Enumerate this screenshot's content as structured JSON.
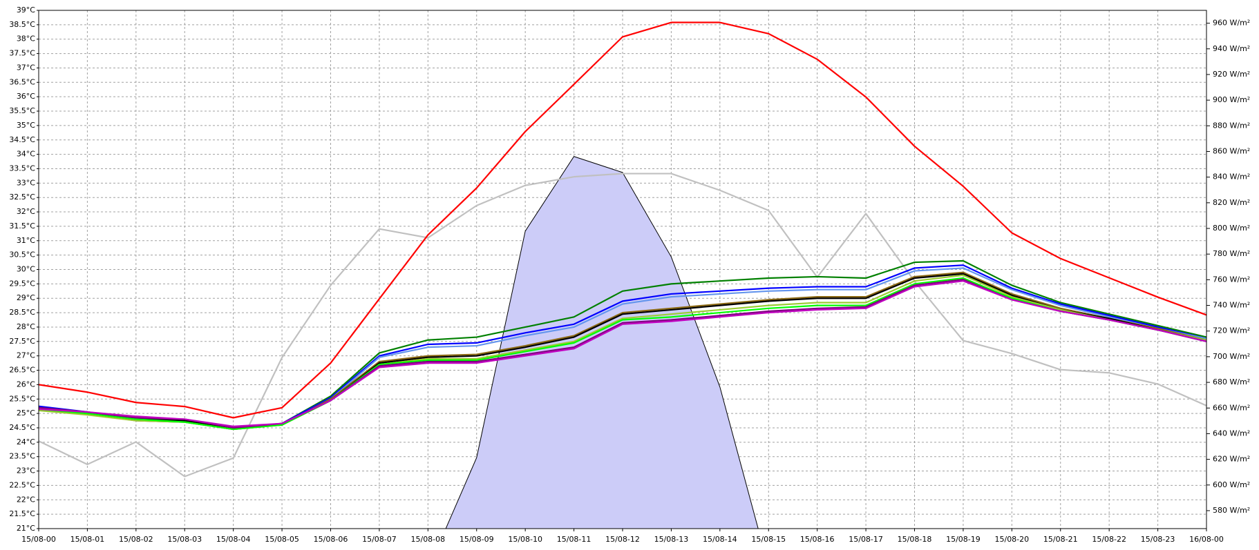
{
  "chart_data": {
    "type": "line",
    "categories": [
      "15/08-00",
      "15/08-01",
      "15/08-02",
      "15/08-03",
      "15/08-04",
      "15/08-05",
      "15/08-06",
      "15/08-07",
      "15/08-08",
      "15/08-09",
      "15/08-10",
      "15/08-11",
      "15/08-12",
      "15/08-13",
      "15/08-14",
      "15/08-15",
      "15/08-16",
      "15/08-17",
      "15/08-18",
      "15/08-19",
      "15/08-20",
      "15/08-21",
      "15/08-22",
      "15/08-23",
      "16/08-00"
    ],
    "ylim": [
      21,
      39
    ],
    "yticks": [
      {
        "value": 21,
        "label": "21°C"
      },
      {
        "value": 21.5,
        "label": "21.5°C"
      },
      {
        "value": 22,
        "label": "22°C"
      },
      {
        "value": 22.5,
        "label": "22.5°C"
      },
      {
        "value": 23,
        "label": "23°C"
      },
      {
        "value": 23.5,
        "label": "23.5°C"
      },
      {
        "value": 24,
        "label": "24°C"
      },
      {
        "value": 24.5,
        "label": "24.5°C"
      },
      {
        "value": 25,
        "label": "25°C"
      },
      {
        "value": 25.5,
        "label": "25.5°C"
      },
      {
        "value": 26,
        "label": "26°C"
      },
      {
        "value": 26.5,
        "label": "26.5°C"
      },
      {
        "value": 27,
        "label": "27°C"
      },
      {
        "value": 27.5,
        "label": "27.5°C"
      },
      {
        "value": 28,
        "label": "28°C"
      },
      {
        "value": 28.5,
        "label": "28.5°C"
      },
      {
        "value": 29,
        "label": "29°C"
      },
      {
        "value": 29.5,
        "label": "29.5°C"
      },
      {
        "value": 30,
        "label": "30°C"
      },
      {
        "value": 30.5,
        "label": "30.5°C"
      },
      {
        "value": 31,
        "label": "31°C"
      },
      {
        "value": 31.5,
        "label": "31.5°C"
      },
      {
        "value": 32,
        "label": "32°C"
      },
      {
        "value": 32.5,
        "label": "32.5°C"
      },
      {
        "value": 33,
        "label": "33°C"
      },
      {
        "value": 33.5,
        "label": "33.5°C"
      },
      {
        "value": 34,
        "label": "34°C"
      },
      {
        "value": 34.5,
        "label": "34.5°C"
      },
      {
        "value": 35,
        "label": "35°C"
      },
      {
        "value": 35.5,
        "label": "35.5°C"
      },
      {
        "value": 36,
        "label": "36°C"
      },
      {
        "value": 36.5,
        "label": "36.5°C"
      },
      {
        "value": 37,
        "label": "37°C"
      },
      {
        "value": 37.5,
        "label": "37.5°C"
      },
      {
        "value": 38,
        "label": "38°C"
      },
      {
        "value": 38.5,
        "label": "38.5°C"
      },
      {
        "value": 39,
        "label": "39°C"
      }
    ],
    "y2lim": [
      566,
      970
    ],
    "y2ticks": [
      {
        "value": 580,
        "label": "580 W/m²"
      },
      {
        "value": 600,
        "label": "600 W/m²"
      },
      {
        "value": 620,
        "label": "620 W/m²"
      },
      {
        "value": 640,
        "label": "640 W/m²"
      },
      {
        "value": 660,
        "label": "660 W/m²"
      },
      {
        "value": 680,
        "label": "680 W/m²"
      },
      {
        "value": 700,
        "label": "700 W/m²"
      },
      {
        "value": 720,
        "label": "720 W/m²"
      },
      {
        "value": 740,
        "label": "740 W/m²"
      },
      {
        "value": 760,
        "label": "760 W/m²"
      },
      {
        "value": 780,
        "label": "780 W/m²"
      },
      {
        "value": 800,
        "label": "800 W/m²"
      },
      {
        "value": 820,
        "label": "820 W/m²"
      },
      {
        "value": 840,
        "label": "840 W/m²"
      },
      {
        "value": 860,
        "label": "860 W/m²"
      },
      {
        "value": 880,
        "label": "880 W/m²"
      },
      {
        "value": 900,
        "label": "900 W/m²"
      },
      {
        "value": 920,
        "label": "920 W/m²"
      },
      {
        "value": 940,
        "label": "940 W/m²"
      },
      {
        "value": 960,
        "label": "960 W/m²"
      }
    ],
    "grid": true,
    "series": [
      {
        "type": "area",
        "axis": "y2",
        "color": "#ccccf8",
        "values": [
          null,
          null,
          null,
          null,
          null,
          null,
          null,
          null,
          534,
          621.3,
          797.9,
          856.1,
          843.6,
          777.8,
          676.4,
          536,
          null,
          null,
          null,
          null,
          null,
          null,
          null,
          null,
          null
        ]
      },
      {
        "color": "#c0c0c0",
        "values": [
          24.04,
          23.23,
          24.01,
          22.81,
          23.45,
          26.94,
          29.45,
          31.41,
          31.1,
          32.22,
          32.92,
          33.22,
          33.33,
          33.33,
          32.75,
          32.05,
          29.73,
          31.94,
          29.59,
          27.53,
          27.08,
          26.52,
          26.41,
          26.02,
          25.27
        ]
      },
      {
        "color": "#ff0000",
        "values": [
          26.0,
          25.74,
          25.38,
          25.24,
          24.85,
          25.2,
          26.75,
          28.98,
          31.2,
          32.83,
          34.79,
          36.43,
          38.08,
          38.58,
          38.58,
          38.19,
          37.3,
          35.99,
          34.28,
          32.89,
          31.27,
          30.38,
          29.71,
          29.04,
          28.42
        ]
      },
      {
        "color": "#008000",
        "values": [
          25.2,
          25.05,
          24.8,
          24.75,
          24.45,
          24.65,
          25.6,
          27.1,
          27.55,
          27.65,
          28.0,
          28.35,
          29.25,
          29.5,
          29.6,
          29.7,
          29.75,
          29.7,
          30.25,
          30.3,
          29.45,
          28.85,
          28.45,
          28.05,
          27.65
        ]
      },
      {
        "color": "#0000ff",
        "values": [
          25.25,
          25.05,
          24.8,
          24.75,
          24.5,
          24.65,
          25.55,
          27.0,
          27.4,
          27.45,
          27.8,
          28.1,
          28.9,
          29.15,
          29.25,
          29.35,
          29.4,
          29.4,
          30.05,
          30.15,
          29.35,
          28.8,
          28.4,
          28.0,
          27.6
        ]
      },
      {
        "color": "#6495ed",
        "values": [
          25.2,
          25.0,
          24.75,
          24.7,
          24.45,
          24.6,
          25.5,
          26.95,
          27.3,
          27.35,
          27.7,
          28.0,
          28.8,
          29.05,
          29.15,
          29.25,
          29.3,
          29.3,
          29.95,
          30.05,
          29.3,
          28.75,
          28.35,
          27.95,
          27.6
        ]
      },
      {
        "color": "#8b6914",
        "values": [
          25.15,
          25.0,
          24.75,
          24.7,
          24.45,
          24.6,
          25.5,
          26.8,
          27.0,
          27.05,
          27.35,
          27.7,
          28.5,
          28.65,
          28.8,
          28.95,
          29.05,
          29.05,
          29.75,
          29.9,
          29.15,
          28.65,
          28.3,
          27.95,
          27.55
        ]
      },
      {
        "color": "#000000",
        "values": [
          25.2,
          25.0,
          24.8,
          24.75,
          24.5,
          24.6,
          25.45,
          26.75,
          26.95,
          27.0,
          27.3,
          27.65,
          28.45,
          28.6,
          28.75,
          28.9,
          29.0,
          29.0,
          29.7,
          29.85,
          29.1,
          28.6,
          28.3,
          27.9,
          27.55
        ]
      },
      {
        "color": "#9acd32",
        "values": [
          25.1,
          24.95,
          24.75,
          24.7,
          24.45,
          24.6,
          25.45,
          26.7,
          26.9,
          26.9,
          27.2,
          27.5,
          28.3,
          28.45,
          28.6,
          28.75,
          28.85,
          28.85,
          29.6,
          29.8,
          29.05,
          28.6,
          28.25,
          27.9,
          27.55
        ]
      },
      {
        "color": "#00ff00",
        "values": [
          25.15,
          25.0,
          24.8,
          24.7,
          24.45,
          24.6,
          25.45,
          26.7,
          26.85,
          26.85,
          27.15,
          27.45,
          28.25,
          28.35,
          28.5,
          28.65,
          28.75,
          28.75,
          29.5,
          29.7,
          29.0,
          28.55,
          28.25,
          27.9,
          27.5
        ]
      },
      {
        "color": "#800080",
        "values": [
          25.2,
          25.05,
          24.85,
          24.8,
          24.5,
          24.65,
          25.45,
          26.65,
          26.8,
          26.8,
          27.05,
          27.3,
          28.15,
          28.25,
          28.4,
          28.55,
          28.65,
          28.7,
          29.45,
          29.65,
          28.95,
          28.55,
          28.25,
          27.9,
          27.5
        ]
      },
      {
        "color": "#c000c0",
        "values": [
          25.15,
          25.05,
          24.9,
          24.8,
          24.55,
          24.65,
          25.45,
          26.6,
          26.75,
          26.75,
          27.0,
          27.25,
          28.1,
          28.2,
          28.35,
          28.5,
          28.6,
          28.65,
          29.4,
          29.6,
          28.95,
          28.55,
          28.25,
          27.9,
          27.5
        ]
      }
    ]
  }
}
